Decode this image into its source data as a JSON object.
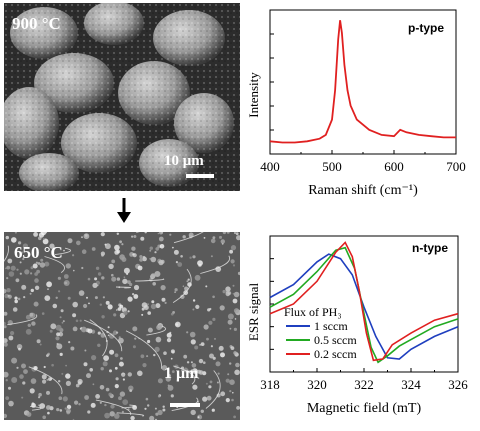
{
  "sem_top": {
    "temp_label": "900 °C",
    "scale_label": "10 μm"
  },
  "sem_bottom": {
    "temp_label": "650 °C",
    "scale_label": "1 μm"
  },
  "colors": {
    "raman_line": "#e02020",
    "series_blue": "#1f3fbf",
    "series_green": "#22aa22",
    "series_red": "#e02020"
  },
  "chart_data": [
    {
      "type": "line",
      "tag": "p-type",
      "xlabel": "Raman shift (cm⁻¹)",
      "ylabel": "Intensity",
      "xlim": [
        400,
        700
      ],
      "xticks": [
        "400",
        "500",
        "600",
        "700"
      ],
      "series": [
        {
          "x": [
            400,
            420,
            440,
            460,
            480,
            490,
            500,
            505,
            510,
            513,
            516,
            520,
            525,
            530,
            540,
            560,
            580,
            600,
            610,
            620,
            640,
            660,
            680,
            700
          ],
          "y": [
            0.05,
            0.04,
            0.04,
            0.05,
            0.07,
            0.1,
            0.22,
            0.45,
            0.85,
            1.0,
            0.9,
            0.65,
            0.45,
            0.33,
            0.22,
            0.14,
            0.1,
            0.09,
            0.14,
            0.12,
            0.1,
            0.09,
            0.08,
            0.08
          ]
        }
      ]
    },
    {
      "type": "line",
      "tag": "n-type",
      "xlabel": "Magnetic field (mT)",
      "ylabel": "ESR signal",
      "xlim": [
        318,
        326
      ],
      "xticks": [
        "318",
        "320",
        "322",
        "324",
        "326"
      ],
      "legend_title": "Flux of PH₃",
      "series": [
        {
          "name": "1 sccm",
          "x": [
            318,
            319,
            320,
            320.5,
            321,
            321.5,
            322,
            322.5,
            323,
            323.5,
            324,
            325,
            326
          ],
          "y": [
            0.15,
            0.35,
            0.7,
            0.82,
            0.75,
            0.5,
            0.0,
            -0.45,
            -0.78,
            -0.8,
            -0.65,
            -0.45,
            -0.3
          ]
        },
        {
          "name": "0.5 sccm",
          "x": [
            318,
            319,
            320,
            320.8,
            321.2,
            321.6,
            322,
            322.3,
            322.6,
            323,
            323.5,
            324,
            325,
            326
          ],
          "y": [
            0.0,
            0.2,
            0.55,
            0.88,
            0.92,
            0.6,
            -0.1,
            -0.62,
            -0.85,
            -0.75,
            -0.6,
            -0.5,
            -0.3,
            -0.18
          ]
        },
        {
          "name": "0.2 sccm",
          "x": [
            318,
            319,
            320,
            320.8,
            321.2,
            321.5,
            321.8,
            322.1,
            322.4,
            322.8,
            323.2,
            324,
            325,
            326
          ],
          "y": [
            -0.1,
            0.05,
            0.4,
            0.85,
            1.0,
            0.78,
            0.25,
            -0.4,
            -0.82,
            -0.8,
            -0.58,
            -0.4,
            -0.2,
            -0.1
          ]
        }
      ]
    }
  ]
}
